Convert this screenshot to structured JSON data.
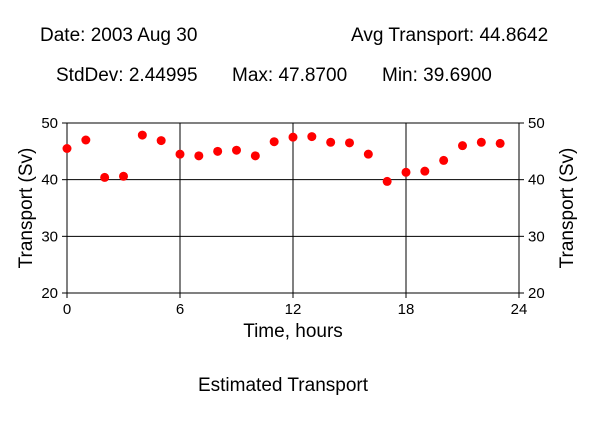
{
  "header": {
    "date": "Date: 2003 Aug 30",
    "avg": "Avg Transport: 44.8642",
    "stddev": "StdDev: 2.44995",
    "max": "Max: 47.8700",
    "min": "Min: 39.6900"
  },
  "caption": "Estimated Transport",
  "chart_data": {
    "type": "scatter",
    "xlabel": "Time, hours",
    "ylabel": "Transport (Sv)",
    "xlim": [
      0,
      24
    ],
    "ylim": [
      20,
      50
    ],
    "xticks": [
      0,
      6,
      12,
      18,
      24
    ],
    "yticks": [
      20,
      30,
      40,
      50
    ],
    "grid": true,
    "marker_color": "#ff0000",
    "x": [
      0,
      1,
      2,
      3,
      4,
      5,
      6,
      7,
      8,
      9,
      10,
      11,
      12,
      13,
      14,
      15,
      16,
      17,
      18,
      19,
      20,
      21,
      22,
      23
    ],
    "y": [
      45.5,
      47.0,
      40.4,
      40.6,
      47.87,
      46.9,
      44.5,
      44.2,
      45.0,
      45.2,
      44.2,
      46.7,
      47.5,
      47.6,
      46.6,
      46.5,
      44.5,
      39.69,
      41.3,
      41.5,
      43.4,
      46.0,
      46.6,
      46.4
    ]
  }
}
